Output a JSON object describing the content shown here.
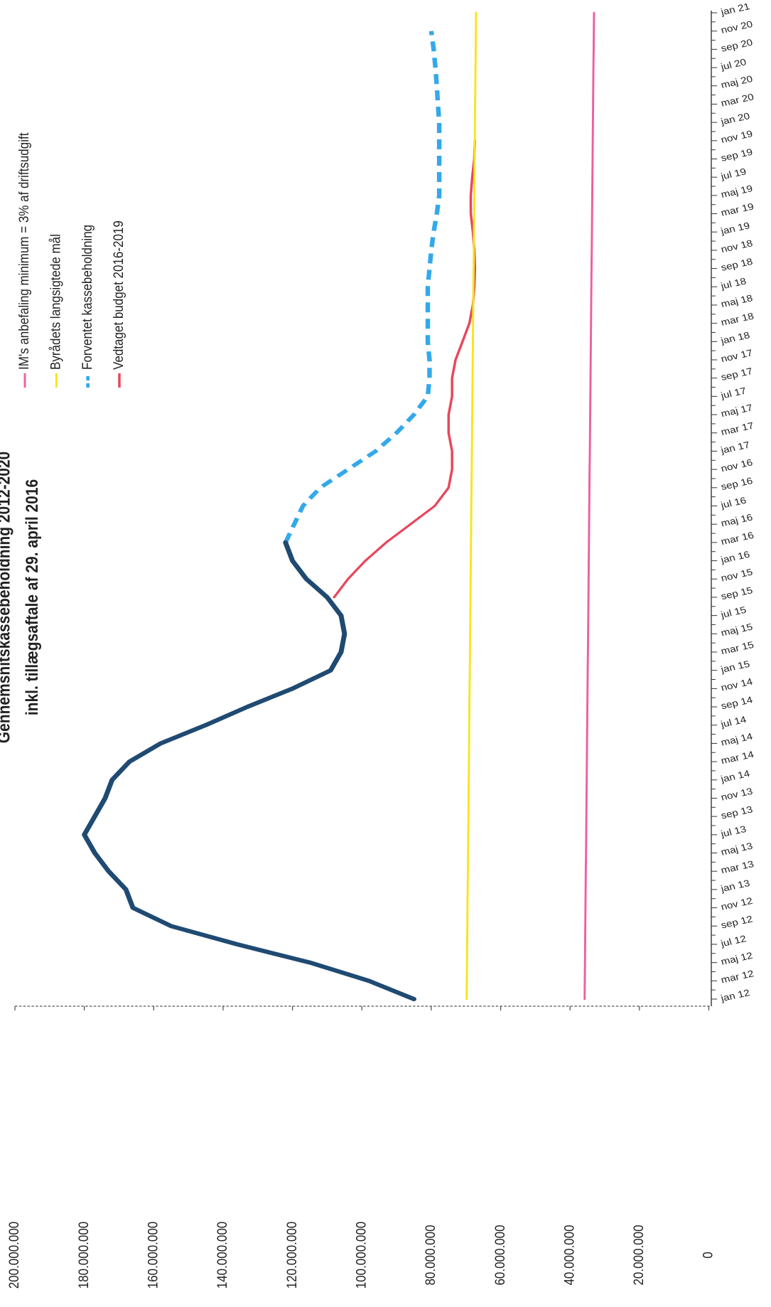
{
  "chart_data": {
    "type": "line",
    "title": "Gennemsnitskassebeholdning 2012-2020",
    "subtitle": "inkl. tillægsaftale af 29. april 2016",
    "categories": [
      "jan 12",
      "mar 12",
      "maj 12",
      "jul 12",
      "sep 12",
      "nov 12",
      "jan 13",
      "mar 13",
      "maj 13",
      "jul 13",
      "sep 13",
      "nov 13",
      "jan 14",
      "mar 14",
      "maj 14",
      "jul 14",
      "sep 14",
      "nov 14",
      "jan 15",
      "mar 15",
      "maj 15",
      "jul 15",
      "sep 15",
      "nov 15",
      "jan 16",
      "mar 16",
      "maj 16",
      "jul 16",
      "sep 16",
      "nov 16",
      "jan 17",
      "mar 17",
      "maj 17",
      "jul 17",
      "sep 17",
      "nov 17",
      "jan 18",
      "mar 18",
      "maj 18",
      "jul 18",
      "sep 18",
      "nov 18",
      "jan 19",
      "mar 19",
      "maj 19",
      "jul 19",
      "sep 19",
      "nov 19",
      "jan 20",
      "mar 20",
      "maj 20",
      "jul 20",
      "sep 20",
      "nov 20",
      "jan 21"
    ],
    "ylim": [
      0,
      200000000
    ],
    "yticks": [
      0,
      {
        "value": 20000000,
        "label": "20.000.000"
      },
      {
        "value": 40000000,
        "label": "40.000.000"
      },
      {
        "value": 60000000,
        "label": "60.000.000"
      },
      {
        "value": 80000000,
        "label": "80.000.000"
      },
      {
        "value": 100000000,
        "label": "100.000.000"
      },
      {
        "value": 120000000,
        "label": "120.000.000"
      },
      {
        "value": 140000000,
        "label": "140.000.000"
      },
      {
        "value": 160000000,
        "label": "160.000.000"
      },
      {
        "value": 180000000,
        "label": "180.000.000"
      },
      {
        "value": 200000000,
        "label": "200.000.000"
      }
    ],
    "grid": false,
    "series": [
      {
        "color": "#1f4a72",
        "style": "solid",
        "width": 6,
        "values": [
          85000000,
          98000000,
          115000000,
          136000000,
          155000000,
          166000000,
          168000000,
          173000000,
          177000000,
          180000000,
          177000000,
          174000000,
          172000000,
          167000000,
          158000000,
          145000000,
          133000000,
          120000000,
          109000000,
          106000000,
          105000000,
          106000000,
          110000000,
          116000000,
          120000000,
          122000000,
          null,
          null,
          null,
          null,
          null,
          null,
          null,
          null,
          null,
          null,
          null,
          null,
          null,
          null,
          null,
          null,
          null,
          null,
          null,
          null,
          null,
          null,
          null,
          null,
          null,
          null,
          null,
          null,
          null
        ]
      },
      {
        "name": "IM's anbefaling minimum = 3% af driftsudgift",
        "color": "#ee5ea0",
        "style": "solid",
        "width": 2.5,
        "values": [
          35800000,
          35750000,
          35700000,
          35650000,
          35600000,
          35550000,
          35500000,
          35450000,
          35400000,
          35350000,
          35300000,
          35250000,
          35200000,
          35150000,
          35100000,
          35050000,
          35000000,
          34950000,
          34900000,
          34850000,
          34800000,
          34750000,
          34700000,
          34650000,
          34600000,
          34550000,
          34500000,
          34450000,
          34400000,
          34350000,
          34300000,
          34250000,
          34200000,
          34150000,
          34100000,
          34050000,
          34000000,
          33950000,
          33900000,
          33850000,
          33800000,
          33750000,
          33700000,
          33650000,
          33600000,
          33550000,
          33500000,
          33450000,
          33400000,
          33350000,
          33300000,
          33250000,
          33200000,
          33150000,
          33100000
        ]
      },
      {
        "name": "Byrådets langsigtede mål",
        "color": "#f5e61e",
        "style": "solid",
        "width": 2.5,
        "values": [
          69800000,
          69750000,
          69700000,
          69650000,
          69600000,
          69550000,
          69500000,
          69450000,
          69400000,
          69350000,
          69300000,
          69250000,
          69200000,
          69150000,
          69100000,
          69050000,
          69000000,
          68950000,
          68900000,
          68850000,
          68800000,
          68750000,
          68700000,
          68650000,
          68600000,
          68550000,
          68500000,
          68450000,
          68400000,
          68350000,
          68300000,
          68250000,
          68200000,
          68150000,
          68100000,
          68050000,
          68000000,
          67950000,
          67900000,
          67850000,
          67800000,
          67750000,
          67700000,
          67650000,
          67600000,
          67550000,
          67500000,
          67450000,
          67400000,
          67350000,
          67300000,
          67250000,
          67200000,
          67150000,
          67100000
        ]
      },
      {
        "name": "Forventet kassebeholdning",
        "color": "#33a9ea",
        "style": "dashed",
        "width": 5.5,
        "values": [
          null,
          null,
          null,
          null,
          null,
          null,
          null,
          null,
          null,
          null,
          null,
          null,
          null,
          null,
          null,
          null,
          null,
          null,
          null,
          null,
          null,
          null,
          null,
          null,
          null,
          122000000,
          119500000,
          117000000,
          112000000,
          104000000,
          96000000,
          90000000,
          85000000,
          81000000,
          80500000,
          80500000,
          81000000,
          81000000,
          81000000,
          81000000,
          80500000,
          80000000,
          79300000,
          78400000,
          77700000,
          77700000,
          77700000,
          77700000,
          77700000,
          78100000,
          78400000,
          78800000,
          79300000,
          80000000,
          null
        ]
      },
      {
        "name": "Vedtaget budget 2016-2019",
        "color": "#e8475c",
        "style": "solid",
        "width": 3,
        "values": [
          null,
          null,
          null,
          null,
          null,
          null,
          null,
          null,
          null,
          null,
          null,
          null,
          null,
          null,
          null,
          null,
          null,
          null,
          null,
          null,
          null,
          null,
          108000000,
          104000000,
          99000000,
          93000000,
          86000000,
          79000000,
          75000000,
          74000000,
          74000000,
          75000000,
          75000000,
          74000000,
          74000000,
          73000000,
          71000000,
          69000000,
          68000000,
          67600000,
          67400000,
          67600000,
          68000000,
          68600000,
          68600000,
          68200000,
          67600000,
          67400000,
          null,
          null,
          null,
          null,
          null,
          null,
          null
        ]
      }
    ]
  }
}
